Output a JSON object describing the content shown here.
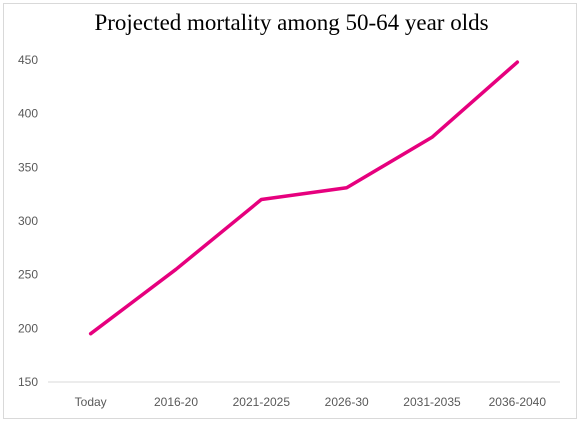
{
  "chart_data": {
    "type": "line",
    "title": "Projected mortality among 50-64 year olds",
    "xlabel": "",
    "ylabel": "",
    "categories": [
      "Today",
      "2016-20",
      "2021-2025",
      "2026-30",
      "2031-2035",
      "2036-2040"
    ],
    "series": [
      {
        "values": [
          195,
          255,
          320,
          331,
          378,
          448
        ]
      }
    ],
    "ylim": [
      150,
      450
    ],
    "yticks": [
      150,
      200,
      250,
      300,
      350,
      400,
      450
    ],
    "grid": false,
    "legend": "none",
    "colors": {
      "line": "#e6007e",
      "tick_text": "#595959",
      "axis": "#d9d9d9"
    }
  }
}
